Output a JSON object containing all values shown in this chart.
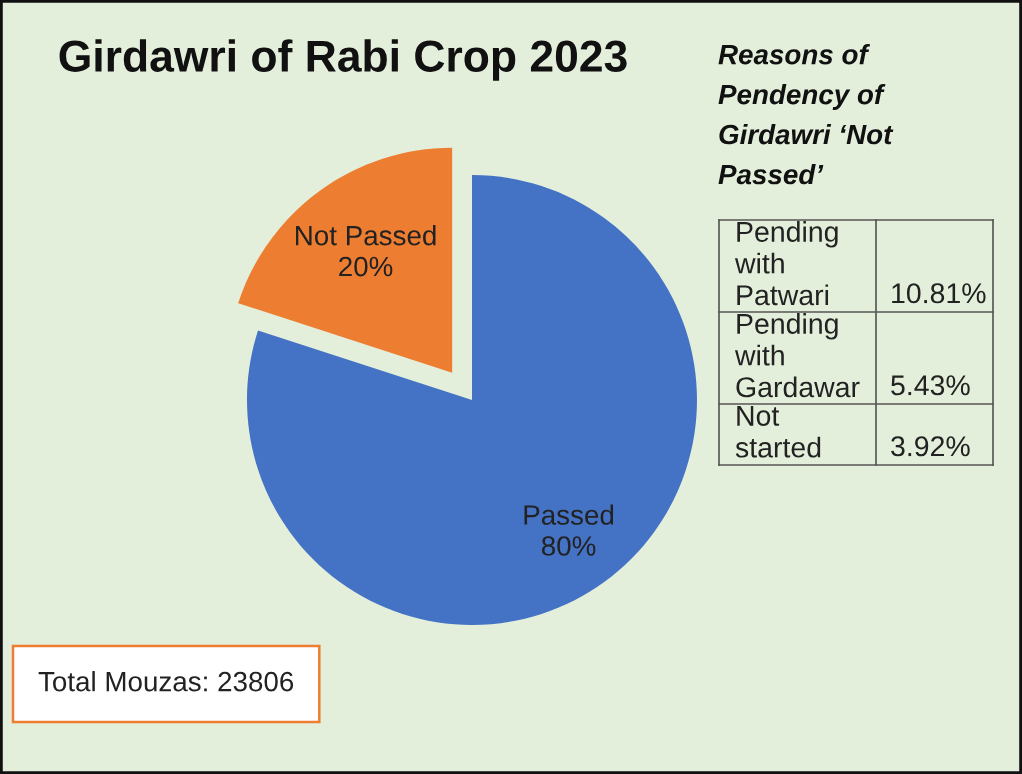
{
  "chart_data": [
    {
      "type": "pie",
      "title": "Girdawri of Rabi Crop 2023",
      "categories": [
        "Passed",
        "Not Passed"
      ],
      "values": [
        80,
        20
      ],
      "colors": [
        "#4472c4",
        "#ed7d31"
      ],
      "value_labels": [
        "80%",
        "20%"
      ],
      "annotations": [
        "Total Mouzas: 23806"
      ]
    },
    {
      "type": "other",
      "title": "Reasons of Pendency of Girdawri ‘Not Passed’",
      "categories": [
        "Pending with Patwari",
        "Pending with Gardawar",
        "Not started"
      ],
      "value_labels": [
        "10.81%",
        "5.43%",
        "3.92%"
      ]
    }
  ]
}
